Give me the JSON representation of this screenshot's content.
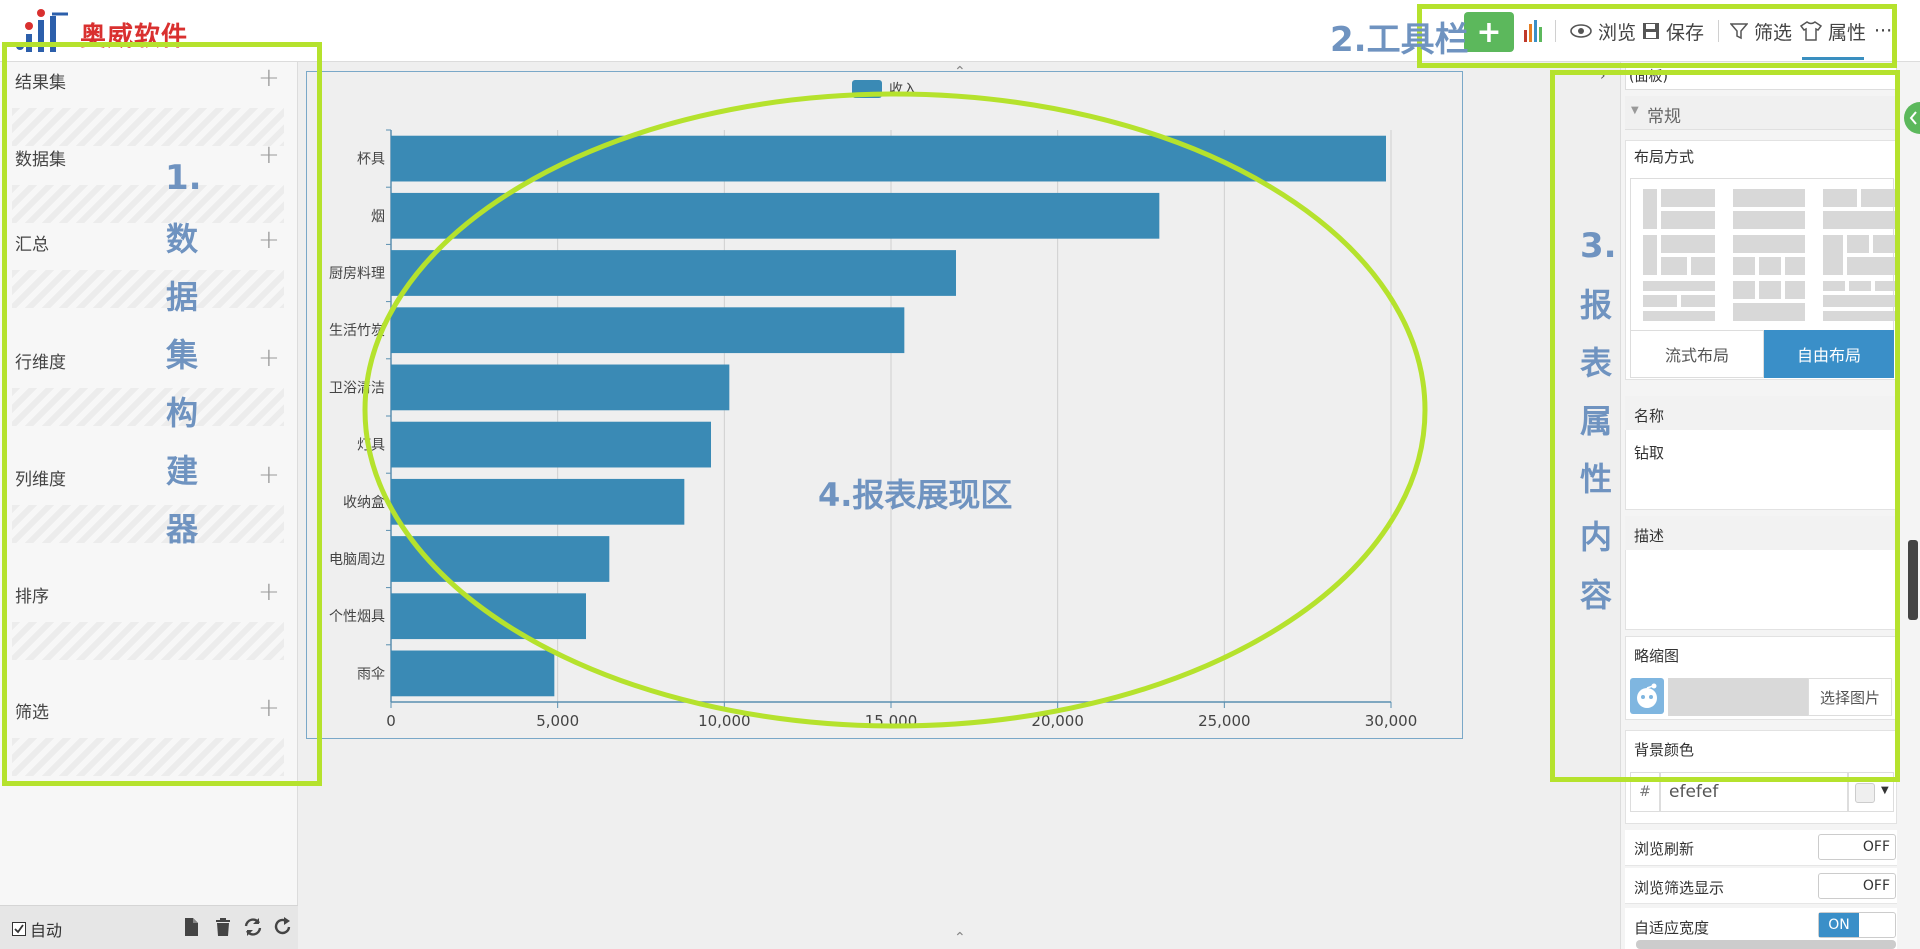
{
  "header": {
    "logo_text": "奥威软件",
    "toolbar": {
      "add_label": "+",
      "browse_label": "浏览",
      "save_label": "保存",
      "filter_label": "筛选",
      "attr_label": "属性",
      "more_label": "···"
    }
  },
  "left_panel": {
    "sections": [
      {
        "label": "结果集"
      },
      {
        "label": "数据集"
      },
      {
        "label": "汇总"
      },
      {
        "label": "行维度"
      },
      {
        "label": "列维度"
      },
      {
        "label": "排序"
      },
      {
        "label": "筛选"
      }
    ],
    "footer": {
      "auto_label": "自动"
    }
  },
  "chart_data": {
    "type": "bar",
    "orientation": "horizontal",
    "categories": [
      "杯具",
      "烟",
      "厨房料理",
      "生活竹炭",
      "卫浴清洁",
      "灯具",
      "收纳盒",
      "电脑周边",
      "个性烟具",
      "雨伞"
    ],
    "series": [
      {
        "name": "收入",
        "values": [
          29850,
          23050,
          16950,
          15400,
          10150,
          9600,
          8800,
          6550,
          5850,
          4900
        ]
      }
    ],
    "xlim": [
      0,
      30000
    ],
    "xticks": [
      "0",
      "5,000",
      "10,000",
      "15,000",
      "20,000",
      "25,000",
      "30,000"
    ],
    "grid": true,
    "legend": "top-center",
    "bar_color": "#3a8ab5"
  },
  "right_panel": {
    "top_select": "(面板)",
    "general_section": "常规",
    "layout_label": "布局方式",
    "flow_layout": "流式布局",
    "free_layout": "自由布局",
    "name_label": "名称",
    "name_value": "钻取",
    "desc_label": "描述",
    "thumb_label": "略缩图",
    "choose_image": "选择图片",
    "bg_label": "背景颜色",
    "bg_hash": "#",
    "bg_value": "efefef",
    "browse_refresh": "浏览刷新",
    "browse_filter_show": "浏览筛选显示",
    "auto_width": "自适应宽度",
    "off": "OFF",
    "on": "ON"
  },
  "annotations": {
    "a1_prefix": "1.",
    "a1_chars": [
      "数",
      "据",
      "集",
      "构",
      "建",
      "器"
    ],
    "a2": "2.工具栏",
    "a3_prefix": "3.",
    "a3_chars": [
      "报",
      "表",
      "属",
      "性",
      "内",
      "容"
    ],
    "a4": "4.报表展现区"
  },
  "colors": {
    "accent": "#3a8fc8",
    "add_button": "#5cb85c",
    "annotation_green": "#b5e22d",
    "annotation_blue": "#6f93c0"
  }
}
